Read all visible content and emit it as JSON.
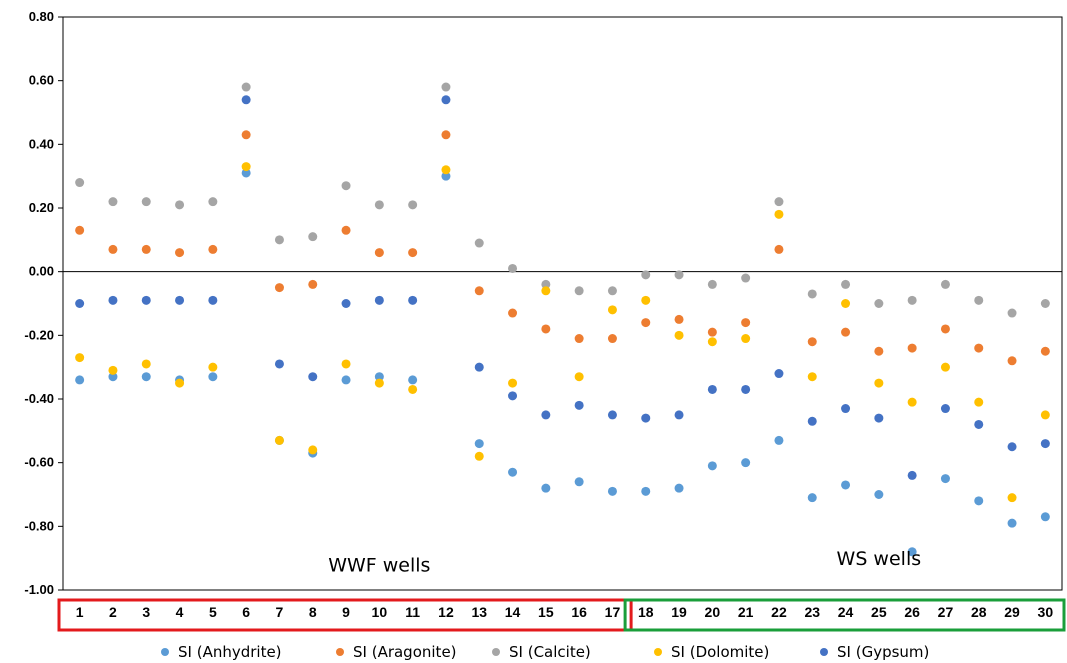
{
  "chart_data": {
    "type": "scatter",
    "title": "",
    "xlabel": "",
    "ylabel": "",
    "ylim": [
      -1.0,
      0.8
    ],
    "yticks": [
      0.8,
      0.6,
      0.4,
      0.2,
      0.0,
      -0.2,
      -0.4,
      -0.6,
      -0.8,
      -1.0
    ],
    "ytick_labels": [
      "0.80",
      "0.60",
      "0.40",
      "0.20",
      "0.00",
      "-0.20",
      "-0.40",
      "-0.60",
      "-0.80",
      "-1.00"
    ],
    "x": [
      "1",
      "2",
      "3",
      "4",
      "5",
      "6",
      "7",
      "8",
      "9",
      "10",
      "11",
      "12",
      "13",
      "14",
      "15",
      "16",
      "17",
      "18",
      "19",
      "20",
      "21",
      "22",
      "23",
      "24",
      "25",
      "26",
      "27",
      "28",
      "29",
      "30"
    ],
    "grid": false,
    "legend_position": "bottom",
    "series": [
      {
        "name": "SI (Anhydrite)",
        "color": "#5b9bd5",
        "values": [
          -0.34,
          -0.33,
          -0.33,
          -0.34,
          -0.33,
          0.31,
          -0.53,
          -0.57,
          -0.34,
          -0.33,
          -0.34,
          0.3,
          -0.54,
          -0.63,
          -0.68,
          -0.66,
          -0.69,
          -0.69,
          -0.68,
          -0.61,
          -0.6,
          -0.53,
          -0.71,
          -0.67,
          -0.7,
          -0.88,
          -0.65,
          -0.72,
          -0.79,
          -0.77
        ]
      },
      {
        "name": "SI (Aragonite)",
        "color": "#ed7d31",
        "values": [
          0.13,
          0.07,
          0.07,
          0.06,
          0.07,
          0.43,
          -0.05,
          -0.04,
          0.13,
          0.06,
          0.06,
          0.43,
          -0.06,
          -0.13,
          -0.18,
          -0.21,
          -0.21,
          -0.16,
          -0.15,
          -0.19,
          -0.16,
          0.07,
          -0.22,
          -0.19,
          -0.25,
          -0.24,
          -0.18,
          -0.24,
          -0.28,
          -0.25
        ]
      },
      {
        "name": "SI (Calcite)",
        "color": "#a5a5a5",
        "values": [
          0.28,
          0.22,
          0.22,
          0.21,
          0.22,
          0.58,
          0.1,
          0.11,
          0.27,
          0.21,
          0.21,
          0.58,
          0.09,
          0.01,
          -0.04,
          -0.06,
          -0.06,
          -0.01,
          -0.01,
          -0.04,
          -0.02,
          0.22,
          -0.07,
          -0.04,
          -0.1,
          -0.09,
          -0.04,
          -0.09,
          -0.13,
          -0.1
        ]
      },
      {
        "name": "SI (Dolomite)",
        "color": "#ffc000",
        "values": [
          -0.27,
          -0.31,
          -0.29,
          -0.35,
          -0.3,
          0.33,
          -0.53,
          -0.56,
          -0.29,
          -0.35,
          -0.37,
          0.32,
          -0.58,
          -0.35,
          -0.06,
          -0.33,
          -0.12,
          -0.09,
          -0.2,
          -0.22,
          -0.21,
          0.18,
          -0.33,
          -0.1,
          -0.35,
          -0.41,
          -0.3,
          -0.41,
          -0.71,
          -0.45
        ]
      },
      {
        "name": "SI (Gypsum)",
        "color": "#4472c4",
        "values": [
          -0.1,
          -0.09,
          -0.09,
          -0.09,
          -0.09,
          0.54,
          -0.29,
          -0.33,
          -0.1,
          -0.09,
          -0.09,
          0.54,
          -0.3,
          -0.39,
          -0.45,
          -0.42,
          -0.45,
          -0.46,
          -0.45,
          -0.37,
          -0.37,
          -0.32,
          -0.47,
          -0.43,
          -0.46,
          -0.64,
          -0.43,
          -0.48,
          -0.55,
          -0.54
        ]
      }
    ],
    "annotations": [
      {
        "text": "WWF wells",
        "x_center": 9.5,
        "y": -0.92
      },
      {
        "text": "WS wells",
        "x_center": 24.5,
        "y": -0.9
      }
    ],
    "groups": [
      {
        "label": "WWF wells",
        "from": 1,
        "to": 17,
        "box_color": "#e31a1c"
      },
      {
        "label": "WS wells",
        "from": 18,
        "to": 30,
        "box_color": "#1a9e3a"
      }
    ]
  }
}
